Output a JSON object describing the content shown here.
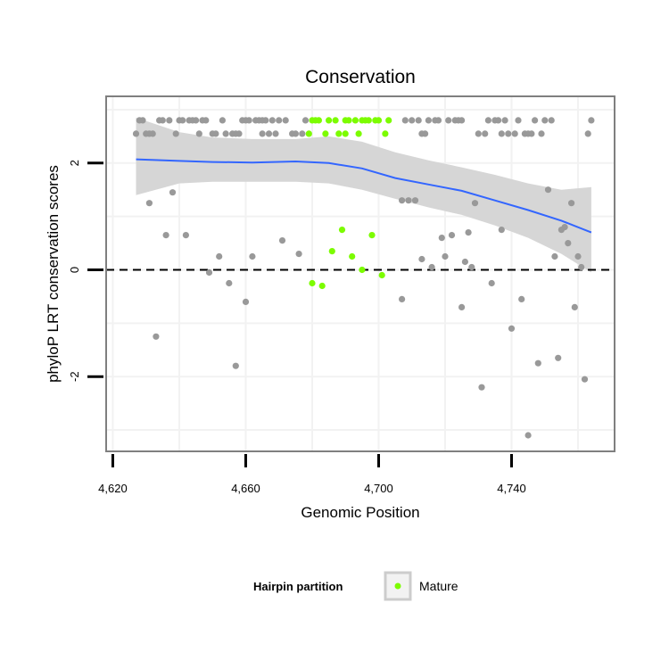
{
  "chart_data": {
    "type": "scatter",
    "title": "Conservation",
    "xlabel": "Genomic Position",
    "ylabel": "phyloP LRT conservation scores",
    "xlim": [
      4618,
      4771
    ],
    "ylim": [
      -3.4,
      3.25
    ],
    "x_ticks": [
      4620,
      4660,
      4700,
      4740
    ],
    "x_tick_labels": [
      "4,620",
      "4,660",
      "4,700",
      "4,740"
    ],
    "y_ticks": [
      -2,
      0,
      2
    ],
    "y_tick_labels": [
      "-2",
      "0",
      "2"
    ],
    "reference_line": {
      "y": 0,
      "style": "dashed"
    },
    "legend": {
      "title": "Hairpin partition",
      "position": "bottom",
      "entries": [
        {
          "label": "Mature",
          "color": "#7cfc00"
        }
      ]
    },
    "colors": {
      "other": "#999999",
      "mature": "#7cfc00",
      "smooth": "#3366ff",
      "ribbon": "#d6d6d6",
      "panel_border": "#7f7f7f",
      "grid": "#f2f2f2"
    },
    "series": [
      {
        "name": "Other",
        "points": [
          [
            4627,
            2.55
          ],
          [
            4628,
            2.8
          ],
          [
            4629,
            2.8
          ],
          [
            4630,
            2.55
          ],
          [
            4631,
            2.55
          ],
          [
            4631,
            1.25
          ],
          [
            4632,
            2.55
          ],
          [
            4633,
            -1.25
          ],
          [
            4634,
            2.8
          ],
          [
            4635,
            2.8
          ],
          [
            4636,
            0.65
          ],
          [
            4637,
            2.8
          ],
          [
            4638,
            1.45
          ],
          [
            4639,
            2.55
          ],
          [
            4640,
            2.8
          ],
          [
            4641,
            2.8
          ],
          [
            4642,
            0.65
          ],
          [
            4643,
            2.8
          ],
          [
            4644,
            2.8
          ],
          [
            4645,
            2.8
          ],
          [
            4646,
            2.55
          ],
          [
            4647,
            2.8
          ],
          [
            4648,
            2.8
          ],
          [
            4649,
            -0.05
          ],
          [
            4650,
            2.55
          ],
          [
            4651,
            2.55
          ],
          [
            4652,
            0.25
          ],
          [
            4653,
            2.8
          ],
          [
            4654,
            2.55
          ],
          [
            4655,
            -0.25
          ],
          [
            4656,
            2.55
          ],
          [
            4657,
            2.55
          ],
          [
            4657,
            -1.8
          ],
          [
            4658,
            2.55
          ],
          [
            4659,
            2.8
          ],
          [
            4660,
            2.8
          ],
          [
            4660,
            -0.6
          ],
          [
            4661,
            2.8
          ],
          [
            4662,
            0.25
          ],
          [
            4663,
            2.8
          ],
          [
            4664,
            2.8
          ],
          [
            4665,
            2.55
          ],
          [
            4665,
            2.8
          ],
          [
            4666,
            2.8
          ],
          [
            4667,
            2.55
          ],
          [
            4668,
            2.8
          ],
          [
            4669,
            2.55
          ],
          [
            4670,
            2.8
          ],
          [
            4671,
            0.55
          ],
          [
            4672,
            2.8
          ],
          [
            4674,
            2.55
          ],
          [
            4675,
            2.55
          ],
          [
            4676,
            0.3
          ],
          [
            4677,
            2.55
          ],
          [
            4678,
            2.8
          ],
          [
            4707,
            1.3
          ],
          [
            4707,
            -0.55
          ],
          [
            4708,
            2.8
          ],
          [
            4709,
            1.3
          ],
          [
            4710,
            2.8
          ],
          [
            4711,
            1.3
          ],
          [
            4712,
            2.8
          ],
          [
            4713,
            0.2
          ],
          [
            4713,
            2.55
          ],
          [
            4714,
            2.55
          ],
          [
            4715,
            2.8
          ],
          [
            4716,
            0.05
          ],
          [
            4717,
            2.8
          ],
          [
            4718,
            2.8
          ],
          [
            4719,
            0.6
          ],
          [
            4720,
            0.25
          ],
          [
            4721,
            2.8
          ],
          [
            4722,
            0.65
          ],
          [
            4723,
            2.8
          ],
          [
            4724,
            2.8
          ],
          [
            4725,
            2.8
          ],
          [
            4725,
            -0.7
          ],
          [
            4726,
            0.15
          ],
          [
            4727,
            0.7
          ],
          [
            4728,
            0.05
          ],
          [
            4729,
            1.25
          ],
          [
            4730,
            2.55
          ],
          [
            4731,
            -2.2
          ],
          [
            4732,
            2.55
          ],
          [
            4733,
            2.8
          ],
          [
            4734,
            -0.25
          ],
          [
            4735,
            2.8
          ],
          [
            4736,
            2.8
          ],
          [
            4737,
            2.55
          ],
          [
            4737,
            0.75
          ],
          [
            4738,
            2.8
          ],
          [
            4739,
            2.55
          ],
          [
            4740,
            -1.1
          ],
          [
            4741,
            2.55
          ],
          [
            4742,
            2.8
          ],
          [
            4743,
            -0.55
          ],
          [
            4744,
            2.55
          ],
          [
            4745,
            2.55
          ],
          [
            4745,
            -3.1
          ],
          [
            4746,
            2.55
          ],
          [
            4747,
            2.8
          ],
          [
            4748,
            -1.75
          ],
          [
            4749,
            2.55
          ],
          [
            4750,
            2.8
          ],
          [
            4751,
            1.5
          ],
          [
            4752,
            2.8
          ],
          [
            4753,
            0.25
          ],
          [
            4754,
            -1.65
          ],
          [
            4755,
            0.75
          ],
          [
            4756,
            0.8
          ],
          [
            4757,
            0.5
          ],
          [
            4758,
            1.25
          ],
          [
            4759,
            -0.7
          ],
          [
            4760,
            0.25
          ],
          [
            4761,
            0.05
          ],
          [
            4762,
            -2.05
          ],
          [
            4763,
            2.55
          ],
          [
            4764,
            2.8
          ]
        ]
      },
      {
        "name": "Mature",
        "points": [
          [
            4679,
            2.55
          ],
          [
            4680,
            2.8
          ],
          [
            4680,
            -0.25
          ],
          [
            4681,
            2.8
          ],
          [
            4682,
            2.8
          ],
          [
            4683,
            -0.3
          ],
          [
            4684,
            2.55
          ],
          [
            4685,
            2.8
          ],
          [
            4686,
            0.35
          ],
          [
            4687,
            2.8
          ],
          [
            4688,
            2.55
          ],
          [
            4689,
            0.75
          ],
          [
            4690,
            2.55
          ],
          [
            4690,
            2.8
          ],
          [
            4691,
            2.8
          ],
          [
            4692,
            0.25
          ],
          [
            4693,
            2.8
          ],
          [
            4694,
            2.55
          ],
          [
            4695,
            2.8
          ],
          [
            4695,
            0.0
          ],
          [
            4696,
            2.8
          ],
          [
            4697,
            2.8
          ],
          [
            4698,
            0.65
          ],
          [
            4699,
            2.8
          ],
          [
            4700,
            2.8
          ],
          [
            4701,
            -0.1
          ],
          [
            4702,
            2.55
          ],
          [
            4703,
            2.8
          ]
        ]
      }
    ],
    "smooth": {
      "x": [
        4627,
        4640,
        4650,
        4662,
        4675,
        4685,
        4695,
        4705,
        4715,
        4725,
        4735,
        4745,
        4755,
        4764
      ],
      "y": [
        2.07,
        2.04,
        2.02,
        2.01,
        2.03,
        2.0,
        1.9,
        1.72,
        1.6,
        1.48,
        1.3,
        1.12,
        0.92,
        0.7
      ],
      "upper": [
        2.85,
        2.58,
        2.48,
        2.45,
        2.45,
        2.5,
        2.4,
        2.2,
        2.05,
        1.92,
        1.78,
        1.62,
        1.5,
        1.55
      ],
      "lower": [
        1.4,
        1.62,
        1.65,
        1.65,
        1.65,
        1.62,
        1.5,
        1.33,
        1.17,
        1.03,
        0.83,
        0.6,
        0.3,
        -0.05
      ]
    }
  }
}
